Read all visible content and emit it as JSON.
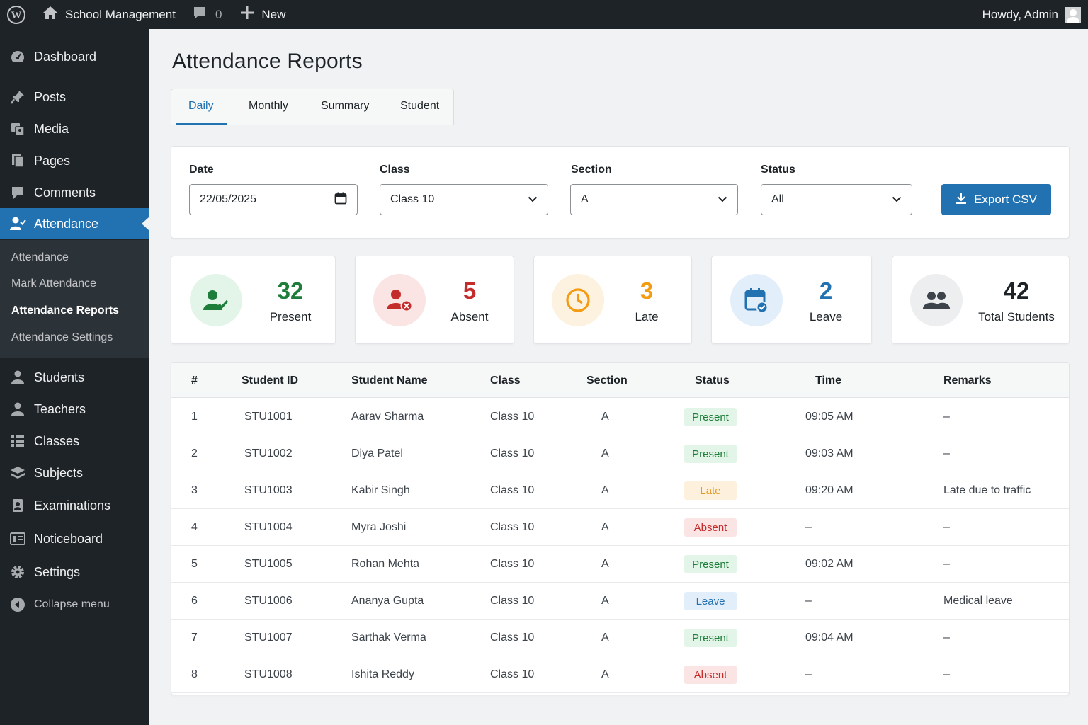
{
  "adminbar": {
    "site_name": "School Management",
    "comments_count": "0",
    "new_label": "New",
    "howdy": "Howdy, Admin"
  },
  "sidebar": {
    "items": [
      {
        "label": "Dashboard",
        "icon": "dashboard-icon"
      },
      {
        "label": "Posts",
        "icon": "pin-icon"
      },
      {
        "label": "Media",
        "icon": "media-icon"
      },
      {
        "label": "Pages",
        "icon": "pages-icon"
      },
      {
        "label": "Comments",
        "icon": "comment-icon"
      },
      {
        "label": "Attendance",
        "icon": "user-check-icon"
      },
      {
        "label": "Students",
        "icon": "user-icon"
      },
      {
        "label": "Teachers",
        "icon": "user-icon"
      },
      {
        "label": "Classes",
        "icon": "list-icon"
      },
      {
        "label": "Subjects",
        "icon": "layers-icon"
      },
      {
        "label": "Examinations",
        "icon": "exam-icon"
      },
      {
        "label": "Noticeboard",
        "icon": "board-icon"
      },
      {
        "label": "Settings",
        "icon": "gear-icon"
      }
    ],
    "submenu": [
      "Attendance",
      "Mark Attendance",
      "Attendance Reports",
      "Attendance Settings"
    ],
    "collapse_label": "Collapse menu"
  },
  "page": {
    "title": "Attendance Reports",
    "tabs": [
      "Daily",
      "Monthly",
      "Summary",
      "Student"
    ]
  },
  "filters": {
    "date_label": "Date",
    "date_value": "22/05/2025",
    "class_label": "Class",
    "class_value": "Class 10",
    "section_label": "Section",
    "section_value": "A",
    "status_label": "Status",
    "status_value": "All",
    "export_label": "Export CSV"
  },
  "stats": [
    {
      "value": "32",
      "label": "Present",
      "color": "#1e7d3a",
      "bg": "#e3f5e8",
      "icon": "user-check-icon"
    },
    {
      "value": "5",
      "label": "Absent",
      "color": "#c42b2b",
      "bg": "#fbe4e4",
      "icon": "user-x-icon"
    },
    {
      "value": "3",
      "label": "Late",
      "color": "#f39c12",
      "bg": "#fdf1e0",
      "icon": "clock-icon"
    },
    {
      "value": "2",
      "label": "Leave",
      "color": "#2271b1",
      "bg": "#e2eefa",
      "icon": "calendar-check-icon"
    },
    {
      "value": "42",
      "label": "Total Students",
      "color": "#1d2327",
      "bg": "#eceef0",
      "icon": "users-icon"
    }
  ],
  "table": {
    "headers": [
      "#",
      "Student ID",
      "Student Name",
      "Class",
      "Section",
      "Status",
      "Time",
      "Remarks"
    ],
    "rows": [
      {
        "num": "1",
        "id": "STU1001",
        "name": "Aarav Sharma",
        "class": "Class 10",
        "section": "A",
        "status": "Present",
        "time": "09:05 AM",
        "remarks": "–"
      },
      {
        "num": "2",
        "id": "STU1002",
        "name": "Diya Patel",
        "class": "Class 10",
        "section": "A",
        "status": "Present",
        "time": "09:03 AM",
        "remarks": "–"
      },
      {
        "num": "3",
        "id": "STU1003",
        "name": "Kabir Singh",
        "class": "Class 10",
        "section": "A",
        "status": "Late",
        "time": "09:20 AM",
        "remarks": "Late due to traffic"
      },
      {
        "num": "4",
        "id": "STU1004",
        "name": "Myra Joshi",
        "class": "Class 10",
        "section": "A",
        "status": "Absent",
        "time": "–",
        "remarks": "–"
      },
      {
        "num": "5",
        "id": "STU1005",
        "name": "Rohan Mehta",
        "class": "Class 10",
        "section": "A",
        "status": "Present",
        "time": "09:02 AM",
        "remarks": "–"
      },
      {
        "num": "6",
        "id": "STU1006",
        "name": "Ananya Gupta",
        "class": "Class 10",
        "section": "A",
        "status": "Leave",
        "time": "–",
        "remarks": "Medical leave"
      },
      {
        "num": "7",
        "id": "STU1007",
        "name": "Sarthak Verma",
        "class": "Class 10",
        "section": "A",
        "status": "Present",
        "time": "09:04 AM",
        "remarks": "–"
      },
      {
        "num": "8",
        "id": "STU1008",
        "name": "Ishita Reddy",
        "class": "Class 10",
        "section": "A",
        "status": "Absent",
        "time": "–",
        "remarks": "–"
      }
    ]
  }
}
